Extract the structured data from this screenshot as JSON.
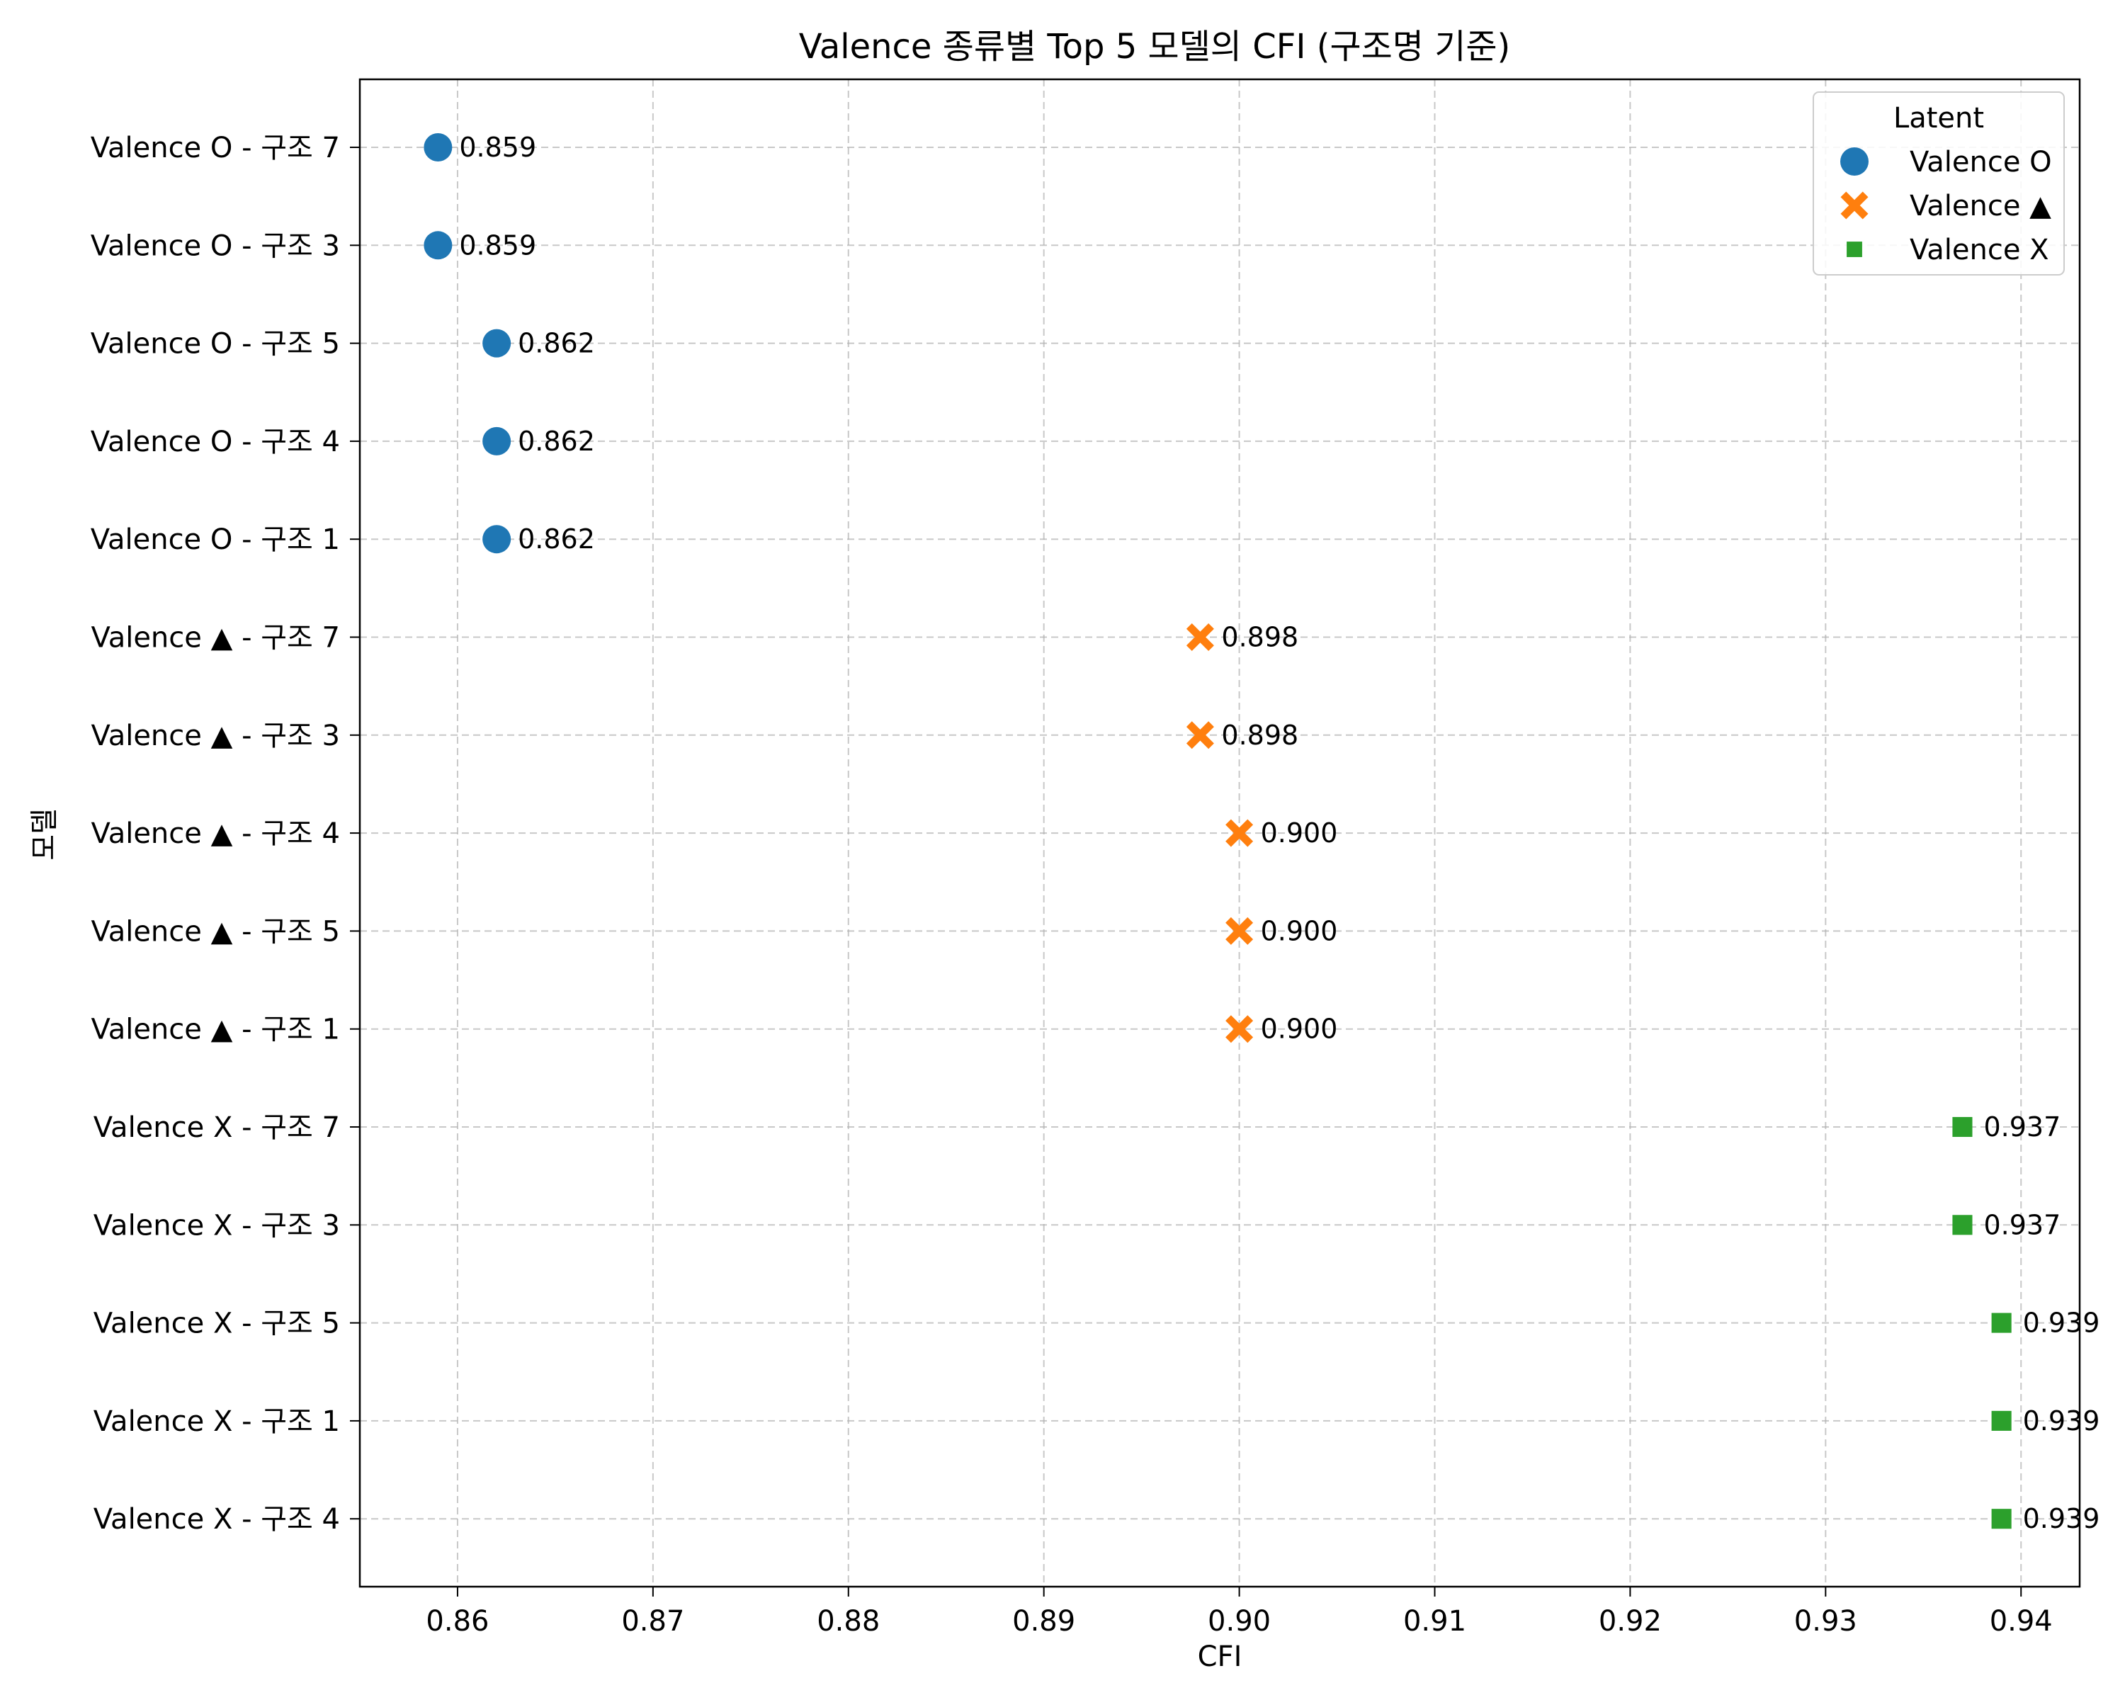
{
  "chart_data": {
    "type": "scatter",
    "title": "Valence 종류별 Top 5 모델의 CFI (구조명 기준)",
    "xlabel": "CFI",
    "ylabel": "모델",
    "xlim": [
      0.855,
      0.943
    ],
    "xticks": [
      0.86,
      0.87,
      0.88,
      0.89,
      0.9,
      0.91,
      0.92,
      0.93,
      0.94
    ],
    "xtick_labels": [
      "0.86",
      "0.87",
      "0.88",
      "0.89",
      "0.90",
      "0.91",
      "0.92",
      "0.93",
      "0.94"
    ],
    "grid": true,
    "legend": {
      "title": "Latent",
      "placement": "top-right"
    },
    "series": [
      {
        "name": "Valence O",
        "color": "#1f77b4",
        "marker": "circle",
        "points": [
          {
            "label": "Valence O - 구조 7",
            "x": 0.859,
            "text": "0.859"
          },
          {
            "label": "Valence O - 구조 3",
            "x": 0.859,
            "text": "0.859"
          },
          {
            "label": "Valence O - 구조 5",
            "x": 0.862,
            "text": "0.862"
          },
          {
            "label": "Valence O - 구조 4",
            "x": 0.862,
            "text": "0.862"
          },
          {
            "label": "Valence O - 구조 1",
            "x": 0.862,
            "text": "0.862"
          }
        ]
      },
      {
        "name": "Valence ▲",
        "color": "#ff7f0e",
        "marker": "x",
        "points": [
          {
            "label": "Valence ▲ - 구조 7",
            "x": 0.898,
            "text": "0.898"
          },
          {
            "label": "Valence ▲ - 구조 3",
            "x": 0.898,
            "text": "0.898"
          },
          {
            "label": "Valence ▲ - 구조 4",
            "x": 0.9,
            "text": "0.900"
          },
          {
            "label": "Valence ▲ - 구조 5",
            "x": 0.9,
            "text": "0.900"
          },
          {
            "label": "Valence ▲ - 구조 1",
            "x": 0.9,
            "text": "0.900"
          }
        ]
      },
      {
        "name": "Valence X",
        "color": "#2ca02c",
        "marker": "square",
        "points": [
          {
            "label": "Valence X - 구조 7",
            "x": 0.937,
            "text": "0.937"
          },
          {
            "label": "Valence X - 구조 3",
            "x": 0.937,
            "text": "0.937"
          },
          {
            "label": "Valence X - 구조 5",
            "x": 0.939,
            "text": "0.939"
          },
          {
            "label": "Valence X - 구조 1",
            "x": 0.939,
            "text": "0.939"
          },
          {
            "label": "Valence X - 구조 4",
            "x": 0.939,
            "text": "0.939"
          }
        ]
      }
    ]
  }
}
